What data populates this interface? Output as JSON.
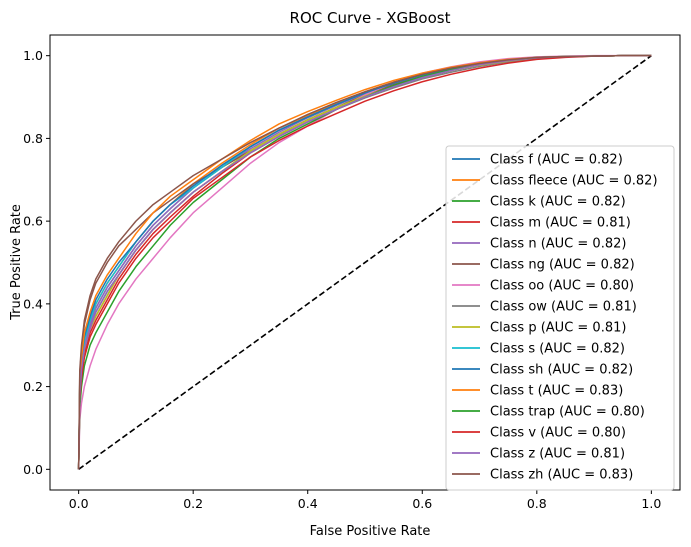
{
  "chart_data": {
    "type": "line",
    "title": "ROC Curve - XGBoost",
    "xlabel": "False Positive Rate",
    "ylabel": "True Positive Rate",
    "xlim": [
      -0.05,
      1.05
    ],
    "ylim": [
      -0.05,
      1.05
    ],
    "xticks": [
      0.0,
      0.2,
      0.4,
      0.6,
      0.8,
      1.0
    ],
    "yticks": [
      0.0,
      0.2,
      0.4,
      0.6,
      0.8,
      1.0
    ],
    "tick_labels": [
      "0.0",
      "0.2",
      "0.4",
      "0.6",
      "0.8",
      "1.0"
    ],
    "grid": false,
    "legend_position": "lower-right",
    "fpr": [
      0,
      0.002,
      0.005,
      0.01,
      0.02,
      0.03,
      0.05,
      0.07,
      0.1,
      0.13,
      0.16,
      0.2,
      0.25,
      0.3,
      0.35,
      0.4,
      0.45,
      0.5,
      0.55,
      0.6,
      0.65,
      0.7,
      0.75,
      0.8,
      0.85,
      0.9,
      0.95,
      1.0
    ],
    "series": [
      {
        "name": "Class f (AUC = 0.82)",
        "color": "#1f77b4",
        "tpr": [
          0,
          0.2,
          0.26,
          0.31,
          0.36,
          0.39,
          0.44,
          0.48,
          0.54,
          0.59,
          0.63,
          0.68,
          0.73,
          0.78,
          0.82,
          0.85,
          0.88,
          0.91,
          0.935,
          0.955,
          0.97,
          0.982,
          0.99,
          0.996,
          0.998,
          0.999,
          1.0,
          1.0
        ]
      },
      {
        "name": "Class fleece (AUC = 0.82)",
        "color": "#ff7f0e",
        "tpr": [
          0,
          0.2,
          0.26,
          0.31,
          0.36,
          0.4,
          0.45,
          0.49,
          0.55,
          0.6,
          0.64,
          0.69,
          0.74,
          0.785,
          0.825,
          0.855,
          0.885,
          0.91,
          0.935,
          0.955,
          0.97,
          0.982,
          0.99,
          0.996,
          0.998,
          0.999,
          1.0,
          1.0
        ]
      },
      {
        "name": "Class k (AUC = 0.82)",
        "color": "#2ca02c",
        "tpr": [
          0,
          0.19,
          0.25,
          0.3,
          0.35,
          0.38,
          0.43,
          0.47,
          0.53,
          0.58,
          0.62,
          0.67,
          0.72,
          0.77,
          0.81,
          0.845,
          0.875,
          0.905,
          0.93,
          0.95,
          0.967,
          0.98,
          0.99,
          0.996,
          0.998,
          0.999,
          1.0,
          1.0
        ]
      },
      {
        "name": "Class m (AUC = 0.81)",
        "color": "#d62728",
        "tpr": [
          0,
          0.18,
          0.23,
          0.28,
          0.33,
          0.36,
          0.41,
          0.46,
          0.52,
          0.57,
          0.61,
          0.66,
          0.715,
          0.765,
          0.805,
          0.84,
          0.87,
          0.9,
          0.925,
          0.947,
          0.964,
          0.978,
          0.988,
          0.995,
          0.998,
          0.999,
          1.0,
          1.0
        ]
      },
      {
        "name": "Class n (AUC = 0.82)",
        "color": "#9467bd",
        "tpr": [
          0,
          0.19,
          0.25,
          0.3,
          0.35,
          0.39,
          0.44,
          0.48,
          0.54,
          0.59,
          0.63,
          0.68,
          0.73,
          0.775,
          0.815,
          0.85,
          0.88,
          0.908,
          0.932,
          0.952,
          0.968,
          0.98,
          0.99,
          0.996,
          0.998,
          0.999,
          1.0,
          1.0
        ]
      },
      {
        "name": "Class ng (AUC = 0.82)",
        "color": "#8c564b",
        "tpr": [
          0,
          0.23,
          0.29,
          0.35,
          0.41,
          0.45,
          0.5,
          0.54,
          0.58,
          0.62,
          0.65,
          0.69,
          0.73,
          0.77,
          0.81,
          0.845,
          0.875,
          0.905,
          0.93,
          0.95,
          0.967,
          0.98,
          0.99,
          0.996,
          0.998,
          0.999,
          1.0,
          1.0
        ]
      },
      {
        "name": "Class oo (AUC = 0.80)",
        "color": "#e377c2",
        "tpr": [
          0,
          0.12,
          0.16,
          0.2,
          0.25,
          0.29,
          0.35,
          0.4,
          0.46,
          0.51,
          0.56,
          0.62,
          0.68,
          0.74,
          0.79,
          0.83,
          0.87,
          0.905,
          0.935,
          0.958,
          0.973,
          0.985,
          0.993,
          0.997,
          0.999,
          1.0,
          1.0,
          1.0
        ]
      },
      {
        "name": "Class ow (AUC = 0.81)",
        "color": "#7f7f7f",
        "tpr": [
          0,
          0.18,
          0.24,
          0.29,
          0.34,
          0.37,
          0.42,
          0.47,
          0.53,
          0.58,
          0.62,
          0.67,
          0.72,
          0.765,
          0.805,
          0.84,
          0.87,
          0.898,
          0.922,
          0.944,
          0.96,
          0.974,
          0.985,
          0.993,
          0.997,
          0.999,
          1.0,
          1.0
        ]
      },
      {
        "name": "Class p (AUC = 0.81)",
        "color": "#bcbd22",
        "tpr": [
          0,
          0.18,
          0.24,
          0.29,
          0.34,
          0.37,
          0.42,
          0.47,
          0.53,
          0.58,
          0.62,
          0.67,
          0.72,
          0.77,
          0.81,
          0.845,
          0.875,
          0.902,
          0.927,
          0.948,
          0.964,
          0.977,
          0.987,
          0.995,
          0.998,
          0.999,
          1.0,
          1.0
        ]
      },
      {
        "name": "Class s (AUC = 0.82)",
        "color": "#17becf",
        "tpr": [
          0,
          0.2,
          0.26,
          0.31,
          0.36,
          0.4,
          0.45,
          0.49,
          0.55,
          0.6,
          0.64,
          0.68,
          0.73,
          0.78,
          0.82,
          0.852,
          0.882,
          0.91,
          0.934,
          0.954,
          0.969,
          0.981,
          0.99,
          0.996,
          0.998,
          0.999,
          1.0,
          1.0
        ]
      },
      {
        "name": "Class sh (AUC = 0.82)",
        "color": "#1f77b4",
        "tpr": [
          0,
          0.21,
          0.27,
          0.32,
          0.37,
          0.41,
          0.46,
          0.5,
          0.55,
          0.6,
          0.64,
          0.685,
          0.735,
          0.78,
          0.82,
          0.852,
          0.882,
          0.91,
          0.934,
          0.954,
          0.969,
          0.981,
          0.99,
          0.996,
          0.998,
          0.999,
          1.0,
          1.0
        ]
      },
      {
        "name": "Class t (AUC = 0.83)",
        "color": "#ff7f0e",
        "tpr": [
          0,
          0.21,
          0.27,
          0.33,
          0.38,
          0.42,
          0.47,
          0.51,
          0.57,
          0.62,
          0.66,
          0.7,
          0.75,
          0.795,
          0.835,
          0.865,
          0.892,
          0.918,
          0.94,
          0.958,
          0.972,
          0.983,
          0.991,
          0.996,
          0.998,
          0.999,
          1.0,
          1.0
        ]
      },
      {
        "name": "Class trap (AUC = 0.80)",
        "color": "#2ca02c",
        "tpr": [
          0,
          0.15,
          0.2,
          0.25,
          0.3,
          0.33,
          0.38,
          0.43,
          0.49,
          0.54,
          0.59,
          0.645,
          0.7,
          0.755,
          0.8,
          0.835,
          0.87,
          0.9,
          0.928,
          0.95,
          0.966,
          0.979,
          0.989,
          0.995,
          0.998,
          0.999,
          1.0,
          1.0
        ]
      },
      {
        "name": "Class v (AUC = 0.80)",
        "color": "#d62728",
        "tpr": [
          0,
          0.17,
          0.22,
          0.27,
          0.32,
          0.35,
          0.4,
          0.45,
          0.51,
          0.56,
          0.6,
          0.655,
          0.705,
          0.755,
          0.795,
          0.83,
          0.86,
          0.89,
          0.915,
          0.937,
          0.955,
          0.97,
          0.982,
          0.991,
          0.996,
          0.999,
          1.0,
          1.0
        ]
      },
      {
        "name": "Class z (AUC = 0.81)",
        "color": "#9467bd",
        "tpr": [
          0,
          0.18,
          0.24,
          0.29,
          0.34,
          0.38,
          0.43,
          0.47,
          0.53,
          0.58,
          0.62,
          0.67,
          0.72,
          0.765,
          0.805,
          0.84,
          0.87,
          0.9,
          0.925,
          0.947,
          0.964,
          0.978,
          0.988,
          0.995,
          0.998,
          0.999,
          1.0,
          1.0
        ]
      },
      {
        "name": "Class zh (AUC = 0.83)",
        "color": "#8c564b",
        "tpr": [
          0,
          0.24,
          0.3,
          0.36,
          0.42,
          0.46,
          0.51,
          0.55,
          0.6,
          0.64,
          0.67,
          0.71,
          0.75,
          0.79,
          0.825,
          0.858,
          0.887,
          0.913,
          0.936,
          0.955,
          0.97,
          0.981,
          0.99,
          0.996,
          0.998,
          0.999,
          1.0,
          1.0
        ]
      }
    ],
    "reference_line": {
      "x": [
        0,
        1
      ],
      "y": [
        0,
        1
      ],
      "color": "#000000",
      "style": "dashed"
    }
  }
}
